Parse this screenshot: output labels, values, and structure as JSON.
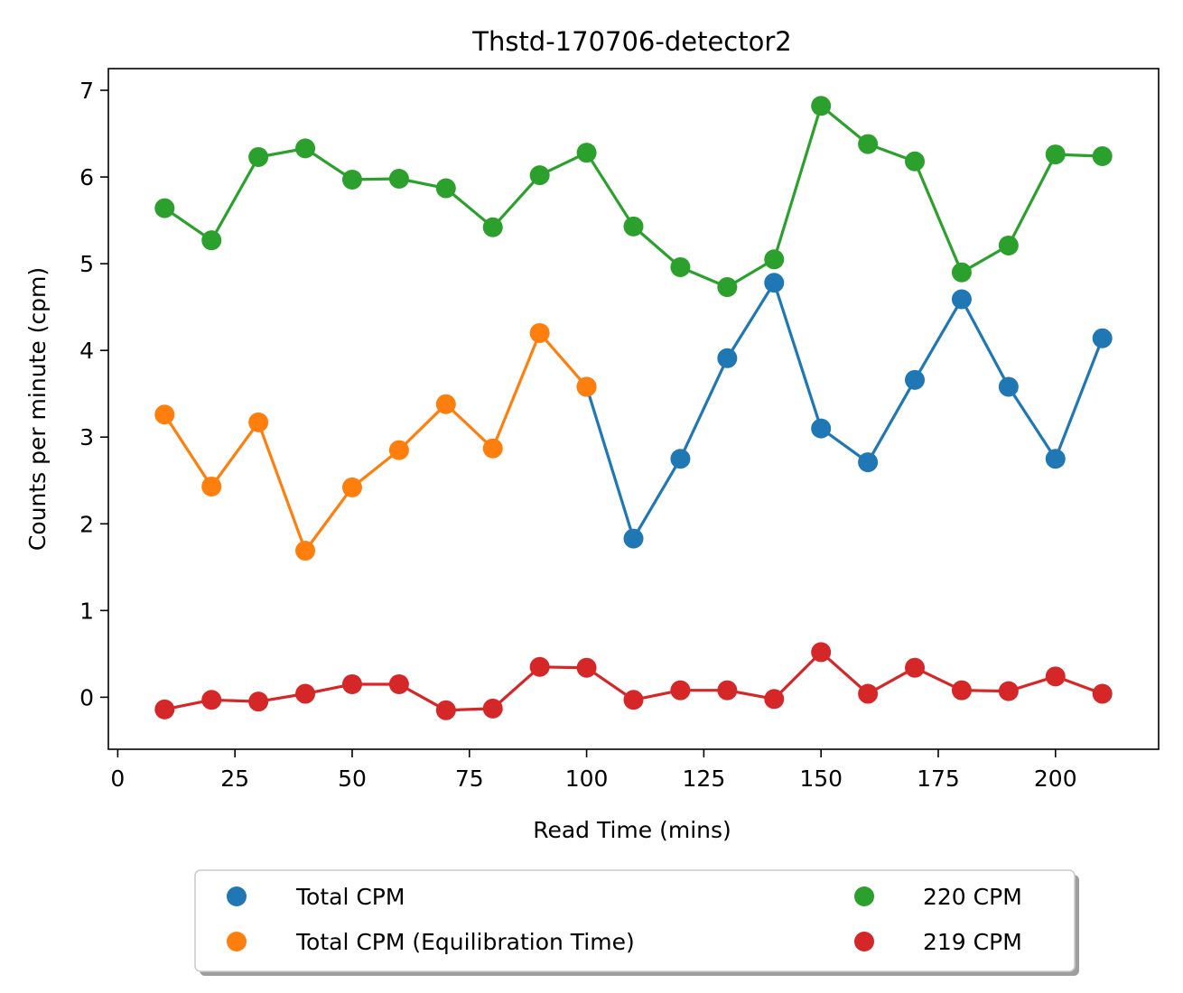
{
  "chart_data": {
    "type": "line",
    "title": "Thstd-170706-detector2",
    "xlabel": "Read Time (mins)",
    "ylabel": "Counts per minute (cpm)",
    "xlim": [
      -2,
      222
    ],
    "ylim": [
      -0.6,
      7.25
    ],
    "xticks": [
      0,
      25,
      50,
      75,
      100,
      125,
      150,
      175,
      200
    ],
    "yticks": [
      0,
      1,
      2,
      3,
      4,
      5,
      6,
      7
    ],
    "grid": false,
    "legend_placement": "bottom-center",
    "series": [
      {
        "name": "Total CPM",
        "color": "#1f77b4",
        "x": [
          100,
          110,
          120,
          130,
          140,
          150,
          160,
          170,
          180,
          190,
          200,
          210
        ],
        "values": [
          3.58,
          1.83,
          2.75,
          3.91,
          4.78,
          3.1,
          2.71,
          3.66,
          4.59,
          3.58,
          2.75,
          4.14
        ]
      },
      {
        "name": "Total CPM (Equilibration Time)",
        "color": "#ff7f0e",
        "x": [
          10,
          20,
          30,
          40,
          50,
          60,
          70,
          80,
          90,
          100
        ],
        "values": [
          3.26,
          2.43,
          3.17,
          1.69,
          2.42,
          2.85,
          3.38,
          2.87,
          4.2,
          3.58
        ]
      },
      {
        "name": "220 CPM",
        "color": "#2ca02c",
        "x": [
          10,
          20,
          30,
          40,
          50,
          60,
          70,
          80,
          90,
          100,
          110,
          120,
          130,
          140,
          150,
          160,
          170,
          180,
          190,
          200,
          210
        ],
        "values": [
          5.64,
          5.27,
          6.23,
          6.33,
          5.97,
          5.98,
          5.87,
          5.42,
          6.02,
          6.28,
          5.43,
          4.96,
          4.73,
          5.05,
          6.82,
          6.38,
          6.18,
          4.9,
          5.21,
          6.26,
          6.24
        ]
      },
      {
        "name": "219 CPM",
        "color": "#d62728",
        "x": [
          10,
          20,
          30,
          40,
          50,
          60,
          70,
          80,
          90,
          100,
          110,
          120,
          130,
          140,
          150,
          160,
          170,
          180,
          190,
          200,
          210
        ],
        "values": [
          -0.14,
          -0.03,
          -0.05,
          0.04,
          0.15,
          0.15,
          -0.15,
          -0.13,
          0.35,
          0.34,
          -0.03,
          0.08,
          0.08,
          -0.02,
          0.52,
          0.04,
          0.34,
          0.08,
          0.07,
          0.24,
          0.04
        ]
      }
    ]
  }
}
